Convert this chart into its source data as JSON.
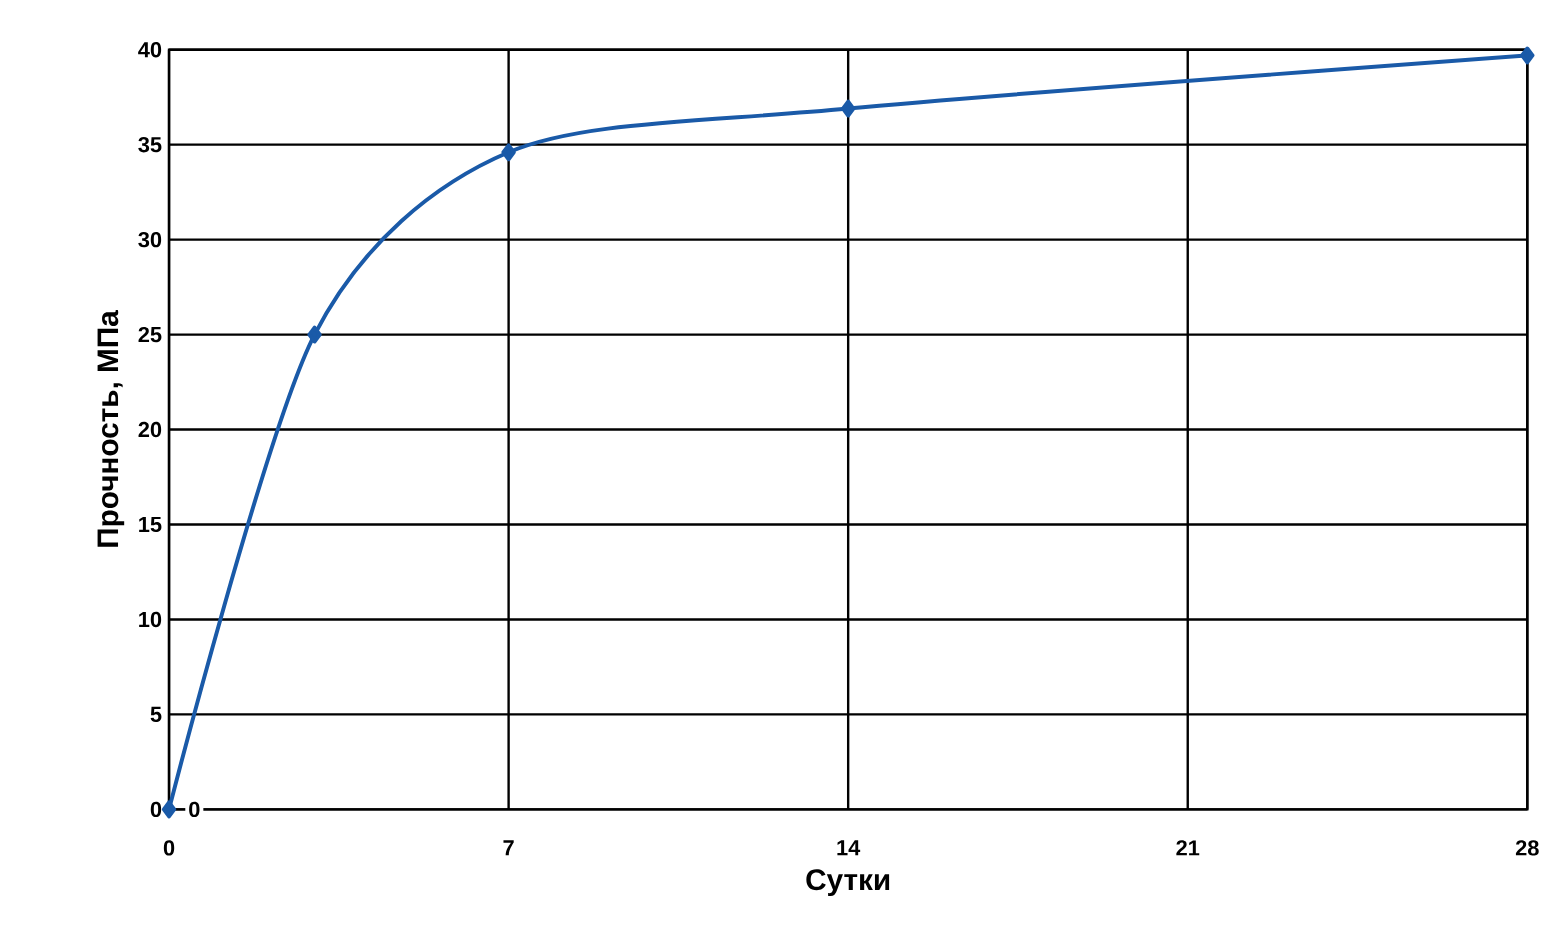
{
  "chart_data": {
    "type": "line",
    "xlabel": "Сутки",
    "ylabel": "Прочность, МПа",
    "x": [
      0,
      3,
      7,
      14,
      28
    ],
    "series": [
      {
        "color": "#1a5aa8",
        "values": [
          0,
          25,
          34.6,
          36.9,
          39.7
        ],
        "value_labels": [
          "0",
          null,
          null,
          null,
          null
        ]
      }
    ],
    "xlim": [
      0,
      28
    ],
    "xticks": [
      0,
      7,
      14,
      21,
      28
    ],
    "ylim": [
      0,
      40
    ],
    "yticks": [
      0,
      5,
      10,
      15,
      20,
      25,
      30,
      35,
      40
    ],
    "grid": true,
    "marker": "diamond",
    "line_style": "solid"
  }
}
